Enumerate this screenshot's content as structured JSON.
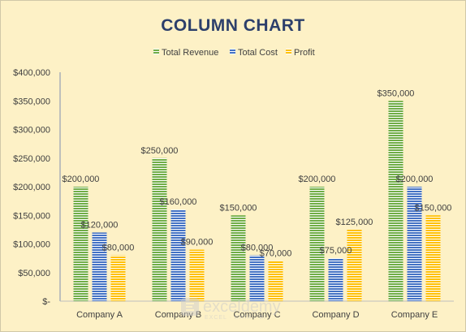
{
  "chart_data": {
    "type": "bar",
    "title": "COLUMN CHART",
    "categories": [
      "Company A",
      "Company B",
      "Company C",
      "Company D",
      "Company E"
    ],
    "series": [
      {
        "name": "Total Revenue",
        "color": "#70ad47",
        "values": [
          200000,
          250000,
          150000,
          200000,
          350000
        ],
        "labels": [
          "$200,000",
          "$250,000",
          "$150,000",
          "$200,000",
          "$350,000"
        ]
      },
      {
        "name": "Total Cost",
        "color": "#4472c4",
        "values": [
          120000,
          160000,
          80000,
          75000,
          200000
        ],
        "labels": [
          "$120,000",
          "$160,000",
          "$80,000",
          "$75,000",
          "$200,000"
        ]
      },
      {
        "name": "Profit",
        "color": "#ffc000",
        "values": [
          80000,
          90000,
          70000,
          125000,
          150000
        ],
        "labels": [
          "$80,000",
          "$90,000",
          "$70,000",
          "$125,000",
          "$150,000"
        ]
      }
    ],
    "ylim": [
      0,
      400000
    ],
    "yticks": [
      0,
      50000,
      100000,
      150000,
      200000,
      250000,
      300000,
      350000,
      400000
    ],
    "ytick_labels": [
      "$-",
      "$50,000",
      "$100,000",
      "$150,000",
      "$200,000",
      "$250,000",
      "$300,000",
      "$350,000",
      "$400,000"
    ],
    "legend": "top",
    "grid": false
  },
  "watermark": {
    "logo_text": "exceldemy",
    "tagline": "EXCEL · DATA · BI"
  }
}
